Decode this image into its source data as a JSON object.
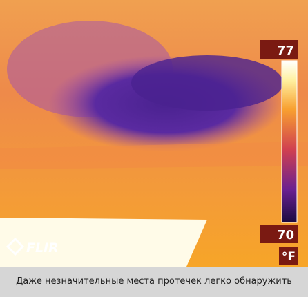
{
  "image": {
    "logo": "FLIR",
    "scale_max": "77",
    "scale_min": "70",
    "unit": "°F"
  },
  "caption": "Даже незначительные места протечек легко обнаружить"
}
